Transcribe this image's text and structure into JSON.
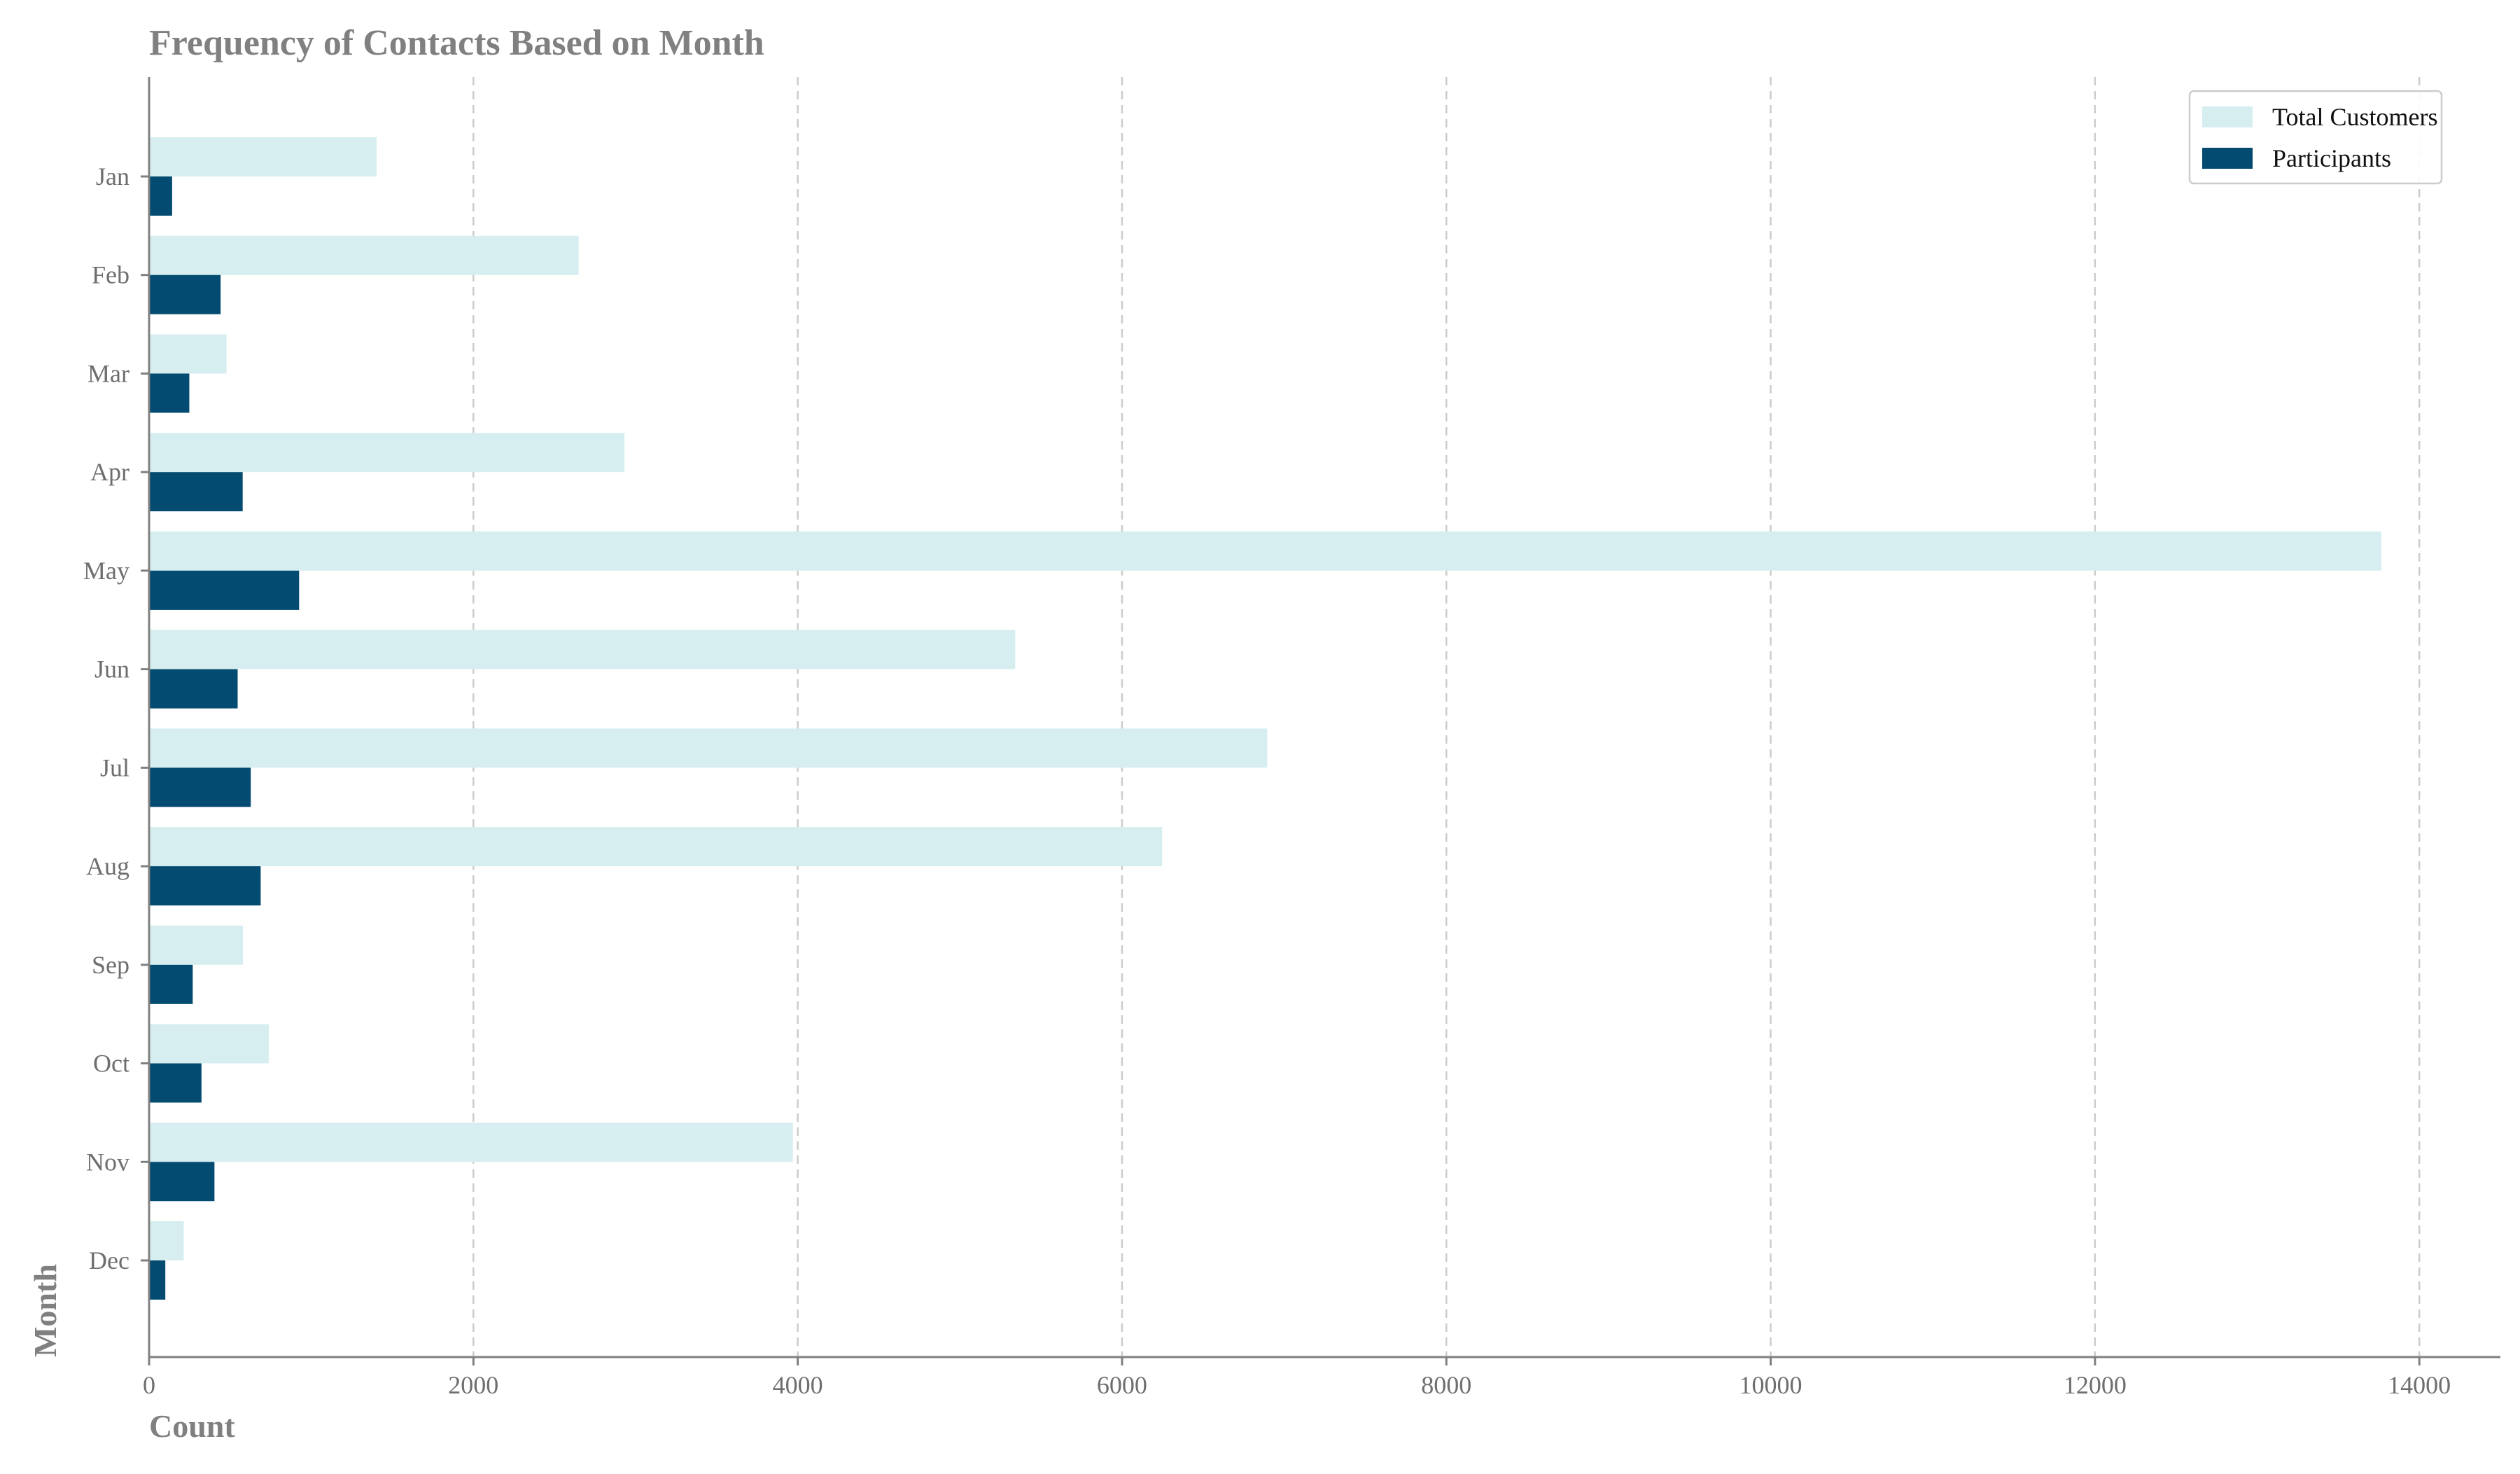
{
  "chart_data": {
    "type": "bar",
    "orientation": "horizontal",
    "title": "Frequency of Contacts Based on Month",
    "xlabel": "Count",
    "ylabel": "Month",
    "categories": [
      "Jan",
      "Feb",
      "Mar",
      "Apr",
      "May",
      "Jun",
      "Jul",
      "Aug",
      "Sep",
      "Oct",
      "Nov",
      "Dec"
    ],
    "series": [
      {
        "name": "Total Customers",
        "color": "#d7eef0",
        "values": [
          1403,
          2649,
          477,
          2932,
          13766,
          5341,
          6895,
          6247,
          579,
          738,
          3970,
          214
        ]
      },
      {
        "name": "Participants",
        "color": "#034b71",
        "values": [
          142,
          441,
          248,
          577,
          925,
          546,
          627,
          688,
          269,
          323,
          403,
          100
        ]
      }
    ],
    "xlim": [
      0,
      14500
    ],
    "xticks": [
      0,
      2000,
      4000,
      6000,
      8000,
      10000,
      12000,
      14000
    ],
    "grid": "x-dashed",
    "legend": {
      "placement": "top-right",
      "entries": [
        "Total Customers",
        "Participants"
      ]
    }
  }
}
